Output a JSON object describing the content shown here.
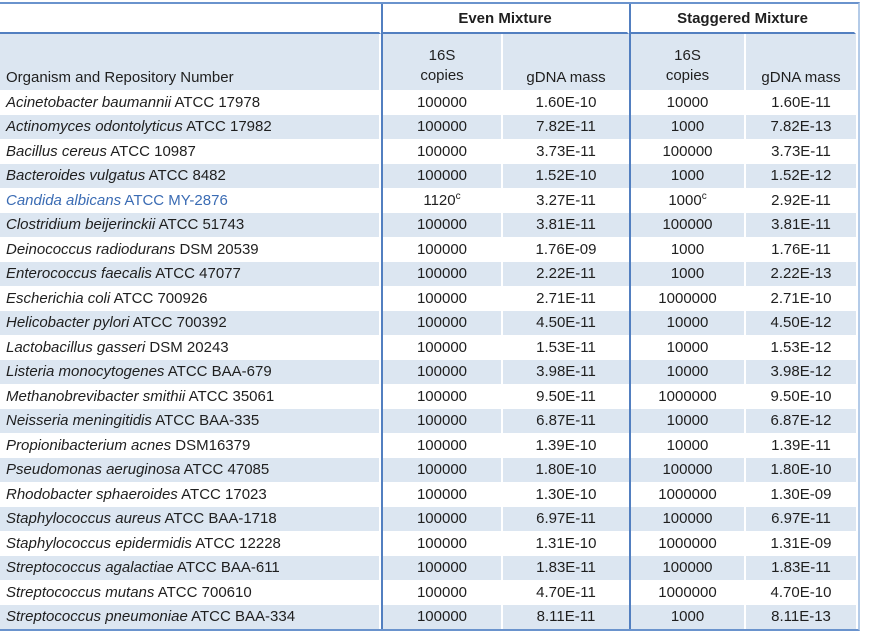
{
  "colors": {
    "stripe": "#dce6f1",
    "rule_blue": "#527fc0",
    "rule_light": "#b4cbe8",
    "highlight_text": "#3b6cb4",
    "text": "#1f1f1f"
  },
  "table": {
    "group_headers": {
      "even": "Even Mixture",
      "staggered": "Staggered Mixture"
    },
    "col_headers": {
      "organism": "Organism and Repository Number",
      "copies_line1": "16S",
      "copies_line2": "copies",
      "gdna_mass": "gDNA mass"
    },
    "rows": [
      {
        "species": "Acinetobacter baumannii",
        "repo": "ATCC 17978",
        "even_copies": "100000",
        "even_copies_sup": "",
        "even_gdna": "1.60E-10",
        "stag_copies": "10000",
        "stag_copies_sup": "",
        "stag_gdna": "1.60E-11",
        "highlight": false
      },
      {
        "species": "Actinomyces odontolyticus",
        "repo": "ATCC 17982",
        "even_copies": "100000",
        "even_copies_sup": "",
        "even_gdna": "7.82E-11",
        "stag_copies": "1000",
        "stag_copies_sup": "",
        "stag_gdna": "7.82E-13",
        "highlight": false
      },
      {
        "species": "Bacillus cereus",
        "repo": "ATCC 10987",
        "even_copies": "100000",
        "even_copies_sup": "",
        "even_gdna": "3.73E-11",
        "stag_copies": "100000",
        "stag_copies_sup": "",
        "stag_gdna": "3.73E-11",
        "highlight": false
      },
      {
        "species": "Bacteroides vulgatus",
        "repo": "ATCC 8482",
        "even_copies": "100000",
        "even_copies_sup": "",
        "even_gdna": "1.52E-10",
        "stag_copies": "1000",
        "stag_copies_sup": "",
        "stag_gdna": "1.52E-12",
        "highlight": false
      },
      {
        "species": "Candida albicans",
        "repo": "ATCC MY-2876",
        "even_copies": "1120",
        "even_copies_sup": "c",
        "even_gdna": "3.27E-11",
        "stag_copies": "1000",
        "stag_copies_sup": "c",
        "stag_gdna": "2.92E-11",
        "highlight": true
      },
      {
        "species": "Clostridium beijerinckii",
        "repo": "ATCC 51743",
        "even_copies": "100000",
        "even_copies_sup": "",
        "even_gdna": "3.81E-11",
        "stag_copies": "100000",
        "stag_copies_sup": "",
        "stag_gdna": "3.81E-11",
        "highlight": false
      },
      {
        "species": "Deinococcus radiodurans",
        "repo": "DSM 20539",
        "even_copies": "100000",
        "even_copies_sup": "",
        "even_gdna": "1.76E-09",
        "stag_copies": "1000",
        "stag_copies_sup": "",
        "stag_gdna": "1.76E-11",
        "highlight": false
      },
      {
        "species": "Enterococcus faecalis",
        "repo": "ATCC 47077",
        "even_copies": "100000",
        "even_copies_sup": "",
        "even_gdna": "2.22E-11",
        "stag_copies": "1000",
        "stag_copies_sup": "",
        "stag_gdna": "2.22E-13",
        "highlight": false
      },
      {
        "species": "Escherichia coli",
        "repo": "ATCC 700926",
        "even_copies": "100000",
        "even_copies_sup": "",
        "even_gdna": "2.71E-11",
        "stag_copies": "1000000",
        "stag_copies_sup": "",
        "stag_gdna": "2.71E-10",
        "highlight": false
      },
      {
        "species": "Helicobacter pylori",
        "repo": "ATCC 700392",
        "even_copies": "100000",
        "even_copies_sup": "",
        "even_gdna": "4.50E-11",
        "stag_copies": "10000",
        "stag_copies_sup": "",
        "stag_gdna": "4.50E-12",
        "highlight": false
      },
      {
        "species": "Lactobacillus gasseri",
        "repo": "DSM 20243",
        "even_copies": "100000",
        "even_copies_sup": "",
        "even_gdna": "1.53E-11",
        "stag_copies": "10000",
        "stag_copies_sup": "",
        "stag_gdna": "1.53E-12",
        "highlight": false
      },
      {
        "species": "Listeria monocytogenes",
        "repo": "ATCC BAA-679",
        "even_copies": "100000",
        "even_copies_sup": "",
        "even_gdna": "3.98E-11",
        "stag_copies": "10000",
        "stag_copies_sup": "",
        "stag_gdna": "3.98E-12",
        "highlight": false
      },
      {
        "species": "Methanobrevibacter smithii",
        "repo": "ATCC 35061",
        "even_copies": "100000",
        "even_copies_sup": "",
        "even_gdna": "9.50E-11",
        "stag_copies": "1000000",
        "stag_copies_sup": "",
        "stag_gdna": "9.50E-10",
        "highlight": false
      },
      {
        "species": "Neisseria meningitidis",
        "repo": "ATCC BAA-335",
        "even_copies": "100000",
        "even_copies_sup": "",
        "even_gdna": "6.87E-11",
        "stag_copies": "10000",
        "stag_copies_sup": "",
        "stag_gdna": "6.87E-12",
        "highlight": false
      },
      {
        "species": "Propionibacterium acnes",
        "repo": "DSM16379",
        "even_copies": "100000",
        "even_copies_sup": "",
        "even_gdna": "1.39E-10",
        "stag_copies": "10000",
        "stag_copies_sup": "",
        "stag_gdna": "1.39E-11",
        "highlight": false
      },
      {
        "species": "Pseudomonas aeruginosa",
        "repo": "ATCC 47085",
        "even_copies": "100000",
        "even_copies_sup": "",
        "even_gdna": "1.80E-10",
        "stag_copies": "100000",
        "stag_copies_sup": "",
        "stag_gdna": "1.80E-10",
        "highlight": false
      },
      {
        "species": "Rhodobacter sphaeroides",
        "repo": "ATCC 17023",
        "even_copies": "100000",
        "even_copies_sup": "",
        "even_gdna": "1.30E-10",
        "stag_copies": "1000000",
        "stag_copies_sup": "",
        "stag_gdna": "1.30E-09",
        "highlight": false
      },
      {
        "species": "Staphylococcus aureus",
        "repo": "ATCC BAA-1718",
        "even_copies": "100000",
        "even_copies_sup": "",
        "even_gdna": "6.97E-11",
        "stag_copies": "100000",
        "stag_copies_sup": "",
        "stag_gdna": "6.97E-11",
        "highlight": false
      },
      {
        "species": "Staphylococcus epidermidis",
        "repo": "ATCC 12228",
        "even_copies": "100000",
        "even_copies_sup": "",
        "even_gdna": "1.31E-10",
        "stag_copies": "1000000",
        "stag_copies_sup": "",
        "stag_gdna": "1.31E-09",
        "highlight": false
      },
      {
        "species": "Streptococcus agalactiae",
        "repo": "ATCC BAA-611",
        "even_copies": "100000",
        "even_copies_sup": "",
        "even_gdna": "1.83E-11",
        "stag_copies": "100000",
        "stag_copies_sup": "",
        "stag_gdna": "1.83E-11",
        "highlight": false
      },
      {
        "species": "Streptococcus mutans",
        "repo": "ATCC 700610",
        "even_copies": "100000",
        "even_copies_sup": "",
        "even_gdna": "4.70E-11",
        "stag_copies": "1000000",
        "stag_copies_sup": "",
        "stag_gdna": "4.70E-10",
        "highlight": false
      },
      {
        "species": "Streptococcus pneumoniae",
        "repo": "ATCC BAA-334",
        "even_copies": "100000",
        "even_copies_sup": "",
        "even_gdna": "8.11E-11",
        "stag_copies": "1000",
        "stag_copies_sup": "",
        "stag_gdna": "8.11E-13",
        "highlight": false
      }
    ]
  }
}
